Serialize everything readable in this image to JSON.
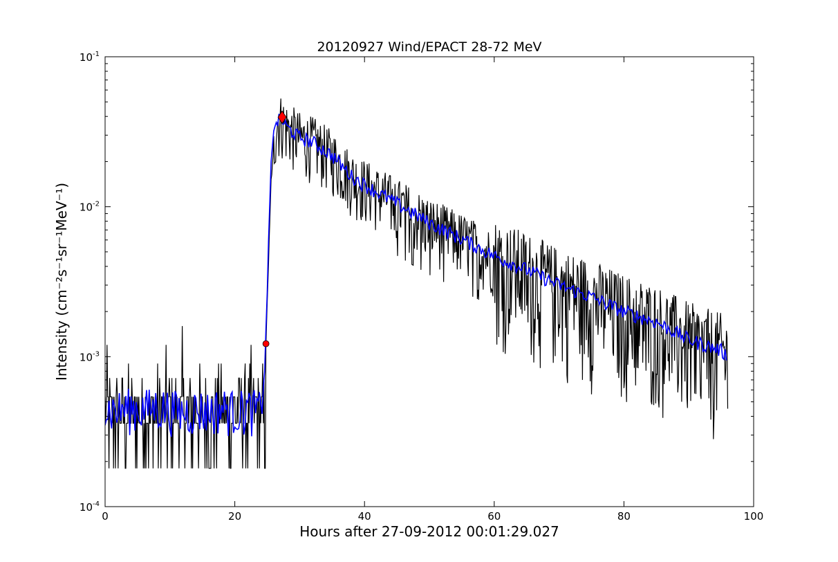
{
  "chart_data": {
    "type": "line",
    "title": "20120927 Wind/EPACT 28-72 MeV",
    "xlabel": "Hours after 27-09-2012 00:01:29.027",
    "ylabel": "Intensity (cm⁻²s⁻¹sr⁻¹MeV⁻¹)",
    "xlim": [
      0,
      100
    ],
    "ylim": [
      0.0001,
      0.1
    ],
    "yscale": "log",
    "grid": false,
    "x_ticks": [
      0,
      20,
      40,
      60,
      80,
      100
    ],
    "x_tick_labels": [
      "0",
      "20",
      "40",
      "60",
      "80",
      "100"
    ],
    "y_ticks": [
      0.0001,
      0.001,
      0.01,
      0.1
    ],
    "y_tick_labels": [
      {
        "base": "10",
        "exp": "-4"
      },
      {
        "base": "10",
        "exp": "-3"
      },
      {
        "base": "10",
        "exp": "-2"
      },
      {
        "base": "10",
        "exp": "-1"
      }
    ],
    "series": [
      {
        "role": "raw intensity",
        "color": "#000000",
        "background": {
          "x_range": [
            0,
            24.8
          ],
          "levels": [
            0.00018,
            0.00036,
            0.00054,
            0.00072,
            0.0009,
            0.0012,
            0.0016
          ]
        },
        "envelope": {
          "x": [
            24.8,
            25.6,
            26.4,
            27.2,
            28,
            30,
            32,
            35,
            38,
            40,
            45,
            50,
            55,
            60,
            65,
            70,
            75,
            80,
            85,
            90,
            95,
            96
          ],
          "y": [
            0.0012,
            0.015,
            0.037,
            0.038,
            0.034,
            0.029,
            0.027,
            0.022,
            0.016,
            0.014,
            0.0105,
            0.0078,
            0.0061,
            0.0047,
            0.0038,
            0.003,
            0.0025,
            0.002,
            0.0017,
            0.0013,
            0.0011,
            0.001
          ],
          "scatter_fraction": 0.6
        }
      },
      {
        "role": "smoothed intensity",
        "color": "#0000ff",
        "background_mean": 0.00045,
        "x": [
          0,
          2,
          4,
          6,
          8,
          10,
          12,
          14,
          16,
          18,
          20,
          22,
          24,
          24.8,
          25.2,
          25.6,
          26,
          26.4,
          27.2,
          28,
          30,
          32,
          35,
          38,
          40,
          45,
          50,
          55,
          60,
          65,
          70,
          75,
          80,
          85,
          90,
          95,
          96
        ],
        "y": [
          0.00045,
          0.00044,
          0.00046,
          0.00045,
          0.00047,
          0.00045,
          0.00043,
          0.00045,
          0.00044,
          0.00046,
          0.00044,
          0.00045,
          0.00044,
          0.0012,
          0.006,
          0.02,
          0.032,
          0.037,
          0.038,
          0.034,
          0.029,
          0.027,
          0.022,
          0.016,
          0.014,
          0.0105,
          0.0078,
          0.0061,
          0.0047,
          0.0038,
          0.003,
          0.0025,
          0.002,
          0.0017,
          0.0013,
          0.0011,
          0.001
        ]
      }
    ],
    "markers": [
      {
        "name": "onset",
        "shape": "circle",
        "color": "#ff0000",
        "x": 24.8,
        "y": 0.00122
      },
      {
        "name": "peak",
        "shape": "diamond",
        "color": "#ff0000",
        "x": 27.3,
        "y": 0.0395
      }
    ]
  }
}
